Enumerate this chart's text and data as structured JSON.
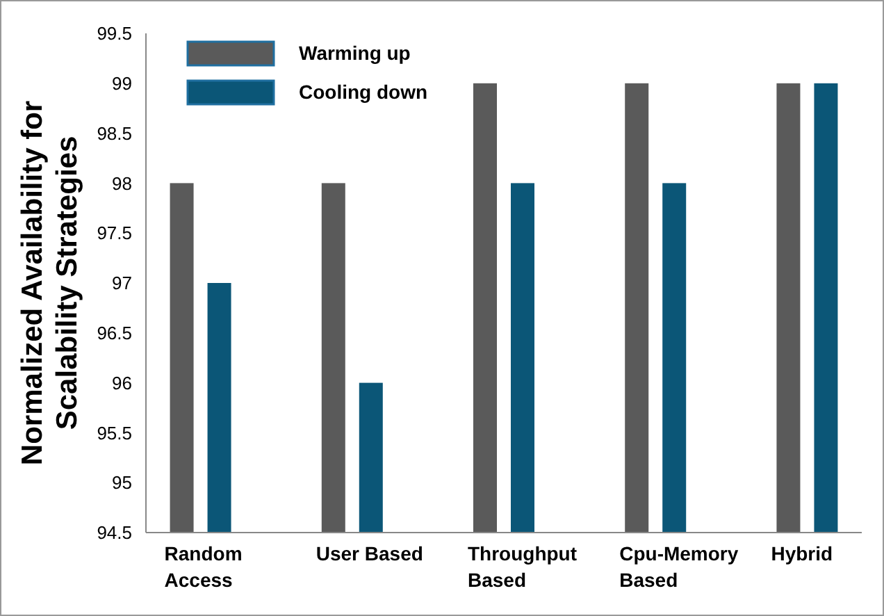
{
  "chart_data": {
    "type": "bar",
    "ylabel": "Normalized Availability  for Scalability Strategies",
    "categories": [
      "Random Access",
      "User Based",
      "Throughput Based",
      "Cpu-Memory Based",
      "Hybrid"
    ],
    "series": [
      {
        "name": "Warming up",
        "color": "#5a5a5a",
        "values": [
          98,
          98,
          99,
          99,
          99
        ]
      },
      {
        "name": "Cooling down",
        "color": "#0b5677",
        "values": [
          97,
          96,
          98,
          98,
          99
        ]
      }
    ],
    "ylim": [
      94.5,
      99.5
    ],
    "yticks": [
      94.5,
      95,
      95.5,
      96,
      96.5,
      97,
      97.5,
      98,
      98.5,
      99,
      99.5
    ],
    "grid": false,
    "legend": "top left"
  }
}
